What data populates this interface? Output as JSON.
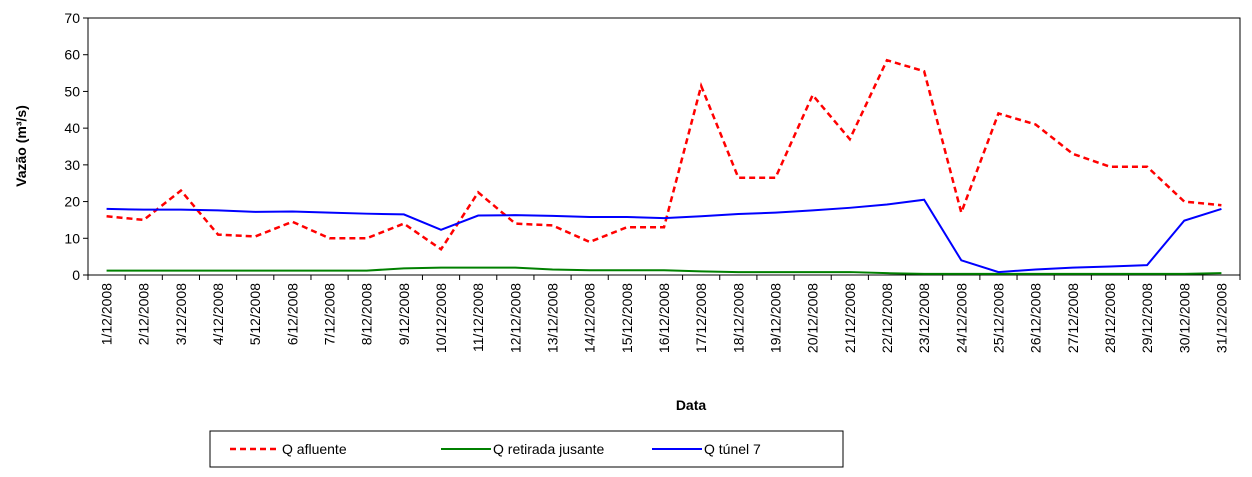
{
  "chart_data": {
    "type": "line",
    "x_label": "Data",
    "y_label": "Vazão (m³/s)",
    "categories": [
      "1/12/2008",
      "2/12/2008",
      "3/12/2008",
      "4/12/2008",
      "5/12/2008",
      "6/12/2008",
      "7/12/2008",
      "8/12/2008",
      "9/12/2008",
      "10/12/2008",
      "11/12/2008",
      "12/12/2008",
      "13/12/2008",
      "14/12/2008",
      "15/12/2008",
      "16/12/2008",
      "17/12/2008",
      "18/12/2008",
      "19/12/2008",
      "20/12/2008",
      "21/12/2008",
      "22/12/2008",
      "23/12/2008",
      "24/12/2008",
      "25/12/2008",
      "26/12/2008",
      "27/12/2008",
      "28/12/2008",
      "29/12/2008",
      "30/12/2008",
      "31/12/2008"
    ],
    "series": [
      {
        "name": "Q afluente",
        "color": "#ff0000",
        "dashed": true,
        "values": [
          16,
          15,
          23,
          11,
          10.5,
          14.5,
          10,
          10,
          14,
          7,
          22.5,
          14,
          13.5,
          9,
          13,
          13,
          51.5,
          26.5,
          26.5,
          49,
          37,
          58.5,
          55.5,
          17,
          44,
          41,
          33,
          29.5,
          29.5,
          20,
          19
        ]
      },
      {
        "name": "Q retirada jusante",
        "color": "#008000",
        "dashed": false,
        "values": [
          1.2,
          1.2,
          1.2,
          1.2,
          1.2,
          1.2,
          1.2,
          1.2,
          1.8,
          2,
          2,
          2,
          1.5,
          1.3,
          1.3,
          1.3,
          1,
          0.8,
          0.8,
          0.8,
          0.8,
          0.5,
          0.3,
          0.3,
          0.3,
          0.3,
          0.3,
          0.3,
          0.3,
          0.3,
          0.5
        ]
      },
      {
        "name": "Q túnel 7",
        "color": "#0000ff",
        "dashed": false,
        "values": [
          18,
          17.8,
          17.8,
          17.6,
          17.2,
          17.3,
          17,
          16.7,
          16.5,
          12.3,
          16.2,
          16.3,
          16.1,
          15.8,
          15.8,
          15.5,
          16,
          16.6,
          17,
          17.6,
          18.3,
          19.2,
          20.5,
          4,
          0.8,
          1.5,
          2,
          2.3,
          2.7,
          14.8,
          18
        ]
      }
    ],
    "ylim": [
      0,
      70
    ],
    "yticks": [
      0,
      10,
      20,
      30,
      40,
      50,
      60,
      70
    ],
    "grid": false,
    "legend": "bottom"
  }
}
